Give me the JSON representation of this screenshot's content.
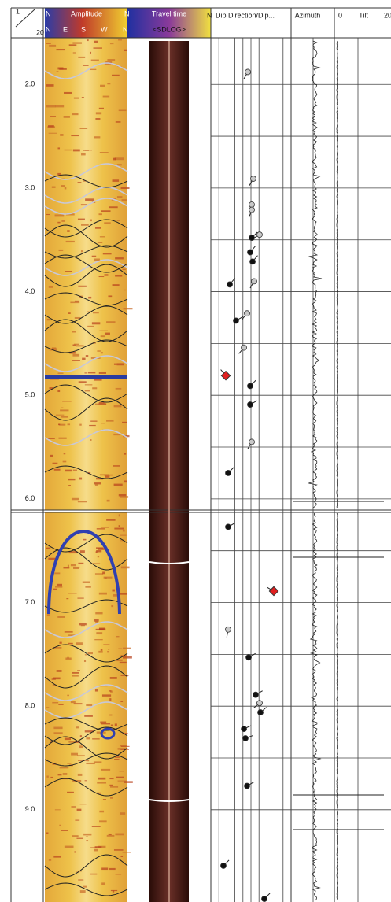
{
  "header": {
    "track_no": 1,
    "scale": 20,
    "amplitude": {
      "title": "Amplitude",
      "left": "N",
      "right": "N",
      "directions": [
        "N",
        "E",
        "S",
        "W",
        "N"
      ]
    },
    "travel_time": {
      "title": "Travel time",
      "subtitle": "<SDLOG>"
    },
    "dip": {
      "north": "N",
      "title": "Dip Direction/Dip..."
    },
    "azimuth": {
      "title": "Azimuth"
    },
    "tilt": {
      "min": 0,
      "title": "Tilt",
      "max": 20
    }
  },
  "chart_data": {
    "type": "scatter",
    "xlim": [
      0,
      90
    ],
    "ylim": [
      1.55,
      9.89
    ],
    "yticks": [
      {
        "value": 2,
        "label": "2.0"
      },
      {
        "value": 3,
        "label": "3.0"
      },
      {
        "value": 4,
        "label": "4.0"
      },
      {
        "value": 5,
        "label": "5.0"
      },
      {
        "value": 6,
        "label": "6.0"
      },
      {
        "value": 7,
        "label": "7.0"
      },
      {
        "value": 8,
        "label": "8.0"
      },
      {
        "value": 9,
        "label": "9.0"
      }
    ],
    "grid": true,
    "series": [
      {
        "color": "#c8c8c8",
        "marker": "circle",
        "x": [
          41.5,
          47.6,
          45.9,
          45.9,
          54.7,
          48.5,
          40.6,
          37.1,
          45.9,
          19.4,
          54.7
        ],
        "values": [
          1.88,
          2.91,
          3.16,
          3.21,
          3.45,
          3.9,
          4.21,
          4.54,
          5.45,
          7.26,
          7.97
        ],
        "azimuth": [
          210,
          210,
          200,
          200,
          240,
          210,
          220,
          220,
          210,
          190,
          230
        ]
      },
      {
        "color": "#111111",
        "marker": "circle",
        "x": [
          45.9,
          44.1,
          46.8,
          21.2,
          28.2,
          44.1,
          44.1,
          19.4,
          19.4,
          42.4,
          50.3,
          55.6,
          37.1,
          38.8,
          40.6,
          14.1,
          60
        ],
        "values": [
          3.48,
          3.62,
          3.71,
          3.93,
          4.28,
          4.91,
          5.09,
          5.75,
          6.27,
          7.53,
          7.89,
          8.06,
          8.22,
          8.31,
          8.77,
          9.54,
          9.86
        ],
        "azimuth": [
          45,
          40,
          40,
          40,
          60,
          45,
          60,
          45,
          60,
          60,
          60,
          50,
          65,
          70,
          60,
          45,
          45
        ]
      },
      {
        "color": "#e02020",
        "marker": "diamond",
        "x": [
          16.8,
          70.6
        ],
        "values": [
          4.81,
          6.89
        ],
        "azimuth": [
          320,
          300
        ]
      }
    ]
  }
}
